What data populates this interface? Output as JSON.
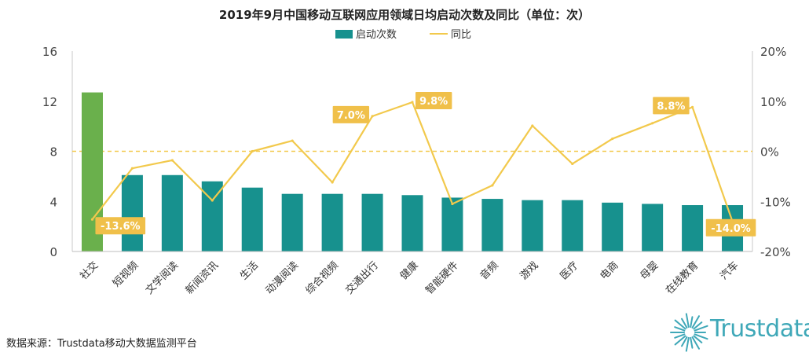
{
  "chart_data": {
    "type": "bar",
    "title": "2019年9月中国移动互联网应用领域日均启动次数及同比（单位：次）",
    "categories": [
      "社交",
      "短视频",
      "文学阅读",
      "新闻资讯",
      "生活",
      "动漫阅读",
      "综合视频",
      "交通出行",
      "健康",
      "智能硬件",
      "音频",
      "游戏",
      "医疗",
      "电商",
      "母婴",
      "在线教育",
      "汽车"
    ],
    "series": [
      {
        "name": "启动次数",
        "type": "bar",
        "axis": "left",
        "color": "#17918e",
        "highlight_color": "#6ab04c",
        "values": [
          12.7,
          6.1,
          6.1,
          5.6,
          5.1,
          4.6,
          4.6,
          4.6,
          4.5,
          4.3,
          4.2,
          4.1,
          4.1,
          3.9,
          3.8,
          3.7,
          3.7
        ]
      },
      {
        "name": "同比",
        "type": "line",
        "axis": "right",
        "color": "#f2c94c",
        "values": [
          -13.6,
          -3.4,
          -1.8,
          -9.8,
          0.0,
          2.1,
          -6.2,
          7.0,
          9.8,
          -10.5,
          -6.8,
          5.1,
          -2.5,
          2.5,
          5.6,
          8.8,
          -14.0
        ]
      }
    ],
    "y_left": {
      "min": 0,
      "max": 16,
      "ticks": [
        "0",
        "4",
        "8",
        "12",
        "16"
      ]
    },
    "y_right": {
      "min": -20,
      "max": 20,
      "ticks": [
        "-20%",
        "-10%",
        "0%",
        "10%",
        "20%"
      ]
    },
    "callouts": [
      {
        "index": 0,
        "label": "-13.6%"
      },
      {
        "index": 7,
        "label": "7.0%"
      },
      {
        "index": 8,
        "label": "9.8%"
      },
      {
        "index": 15,
        "label": "8.8%"
      },
      {
        "index": 16,
        "label": "-14.0%"
      }
    ],
    "reference_line": {
      "axis": "right",
      "value": 0,
      "style": "dashed",
      "color": "#f2c94c"
    },
    "legend_placement": "top-center"
  },
  "footer": {
    "source": "数据来源：Trustdata移动大数据监测平台",
    "logo_text": "Trustdata"
  }
}
